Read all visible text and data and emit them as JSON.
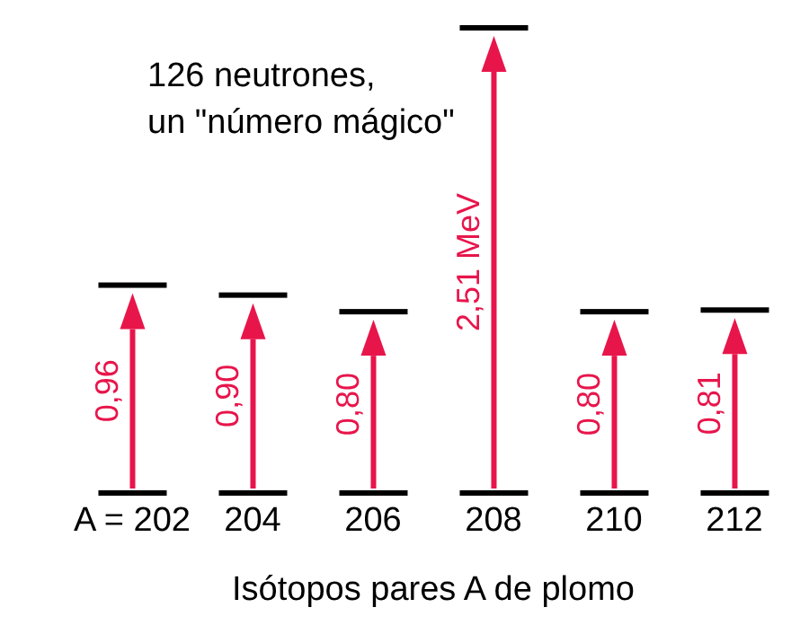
{
  "chart_data": {
    "type": "bar",
    "categories": [
      "A = 202",
      "204",
      "206",
      "208",
      "210",
      "212"
    ],
    "values": [
      0.96,
      0.9,
      0.8,
      2.51,
      0.8,
      0.81
    ],
    "value_labels": [
      "0,96",
      "0,90",
      "0,80",
      "2,51 MeV",
      "0,80",
      "0,81"
    ],
    "color": "#e8154b",
    "xlabel": "Isótopos pares A de plomo",
    "annotations": [
      "126 neutrones,",
      "un \"número mágico\""
    ]
  }
}
